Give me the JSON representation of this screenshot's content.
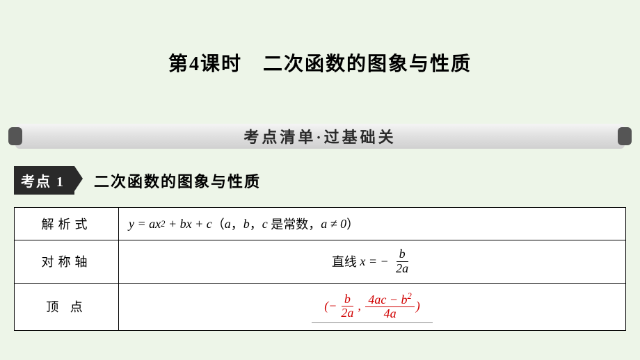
{
  "title": "第4课时　二次函数的图象与性质",
  "section_bar": "考点清单·过基础关",
  "badge": "考点 1",
  "subtitle": "二次函数的图象与性质",
  "table": {
    "rows": [
      {
        "label": "解析式"
      },
      {
        "label": "对称轴"
      },
      {
        "label": "顶  点"
      }
    ]
  },
  "colors": {
    "page_bg": "#edf5e8",
    "answer_red": "#d00000",
    "badge_bg": "#2a2a2a",
    "table_bg": "#ffffff"
  },
  "typography": {
    "title_fontsize": 28,
    "section_fontsize": 22,
    "subtitle_fontsize": 22,
    "cell_fontsize": 18
  },
  "formulas": {
    "expression": {
      "text": "y = ax² + bx + c (a, b, c 是常数, a ≠ 0)",
      "prefix_cn": "",
      "suffix_cn": "是常数",
      "parts": [
        "y",
        "=",
        "ax²",
        "+",
        "bx",
        "+",
        "c"
      ]
    },
    "axis": {
      "prefix_cn": "直线",
      "lhs": "x = −",
      "frac_num": "b",
      "frac_den": "2a"
    },
    "vertex": {
      "open": "(−",
      "frac1_num": "b",
      "frac1_den": "2a",
      "comma": ", ",
      "frac2_num": "4ac − b²",
      "frac2_den": "4a",
      "close": ")"
    }
  }
}
